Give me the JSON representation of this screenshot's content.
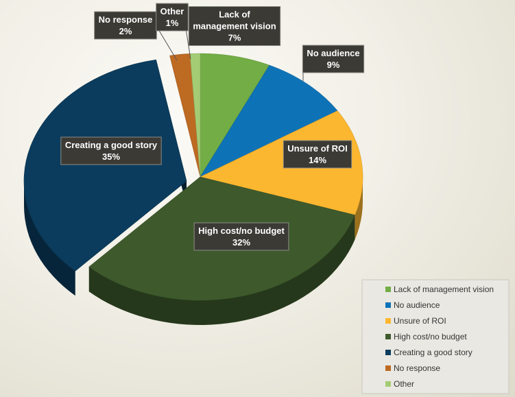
{
  "chart_data": {
    "type": "pie",
    "title": "",
    "slices": [
      {
        "label": "Lack of management vision",
        "value": 7,
        "display": "7%",
        "color": "#72ad45"
      },
      {
        "label": "No audience",
        "value": 9,
        "display": "9%",
        "color": "#0e73b6"
      },
      {
        "label": "Unsure of ROI",
        "value": 14,
        "display": "14%",
        "color": "#fcb730"
      },
      {
        "label": "High cost/no budget",
        "value": 32,
        "display": "32%",
        "color": "#3e5a2c"
      },
      {
        "label": "Creating a good story",
        "value": 35,
        "display": "35%",
        "color": "#0b3c5d"
      },
      {
        "label": "No response",
        "value": 2,
        "display": "2%",
        "color": "#bd6a23"
      },
      {
        "label": "Other",
        "value": 1,
        "display": "1%",
        "color": "#a4cc74"
      }
    ],
    "start_angle_deg": 90,
    "direction": "clockwise",
    "exploded_slice": "Creating a good story",
    "style": "3d",
    "legend_position": "bottom-right"
  }
}
